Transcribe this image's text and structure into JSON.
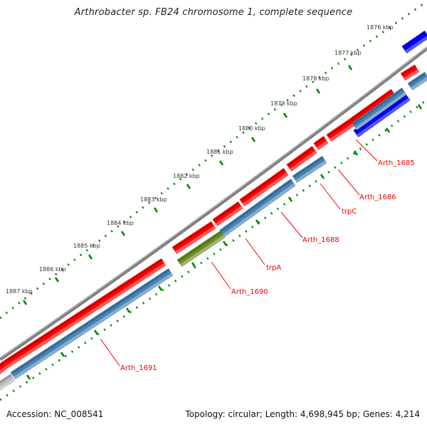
{
  "title": "Arthrobacter sp. FB24 chromosome 1, complete sequence",
  "footer": {
    "accession": "Accession: NC_008541",
    "summary": "Topology: circular; Length: 4,698,945 bp; Genes: 4,214"
  },
  "kbp_labels": [
    "1876 kbp",
    "1877 kbp",
    "1878 kbp",
    "1879 kbp",
    "1880 kbp",
    "1881 kbp",
    "1882 kbp",
    "1883 kbp",
    "1884 kbp",
    "1885 kbp",
    "1886 kbp",
    "1887 kbp"
  ],
  "gene_labels": [
    "Arth_1685",
    "Arth_1686",
    "trpC",
    "Arth_1688",
    "trpA",
    "Arth_1690",
    "Arth_1691"
  ],
  "colors": {
    "forward_cds": "#ff0000",
    "reverse_cds": "#4682b4",
    "other_gene": "#0000ff",
    "trpA": "#6b8e23",
    "backbone": "#808080",
    "ticks": "#008000",
    "label": "#ff0000"
  }
}
